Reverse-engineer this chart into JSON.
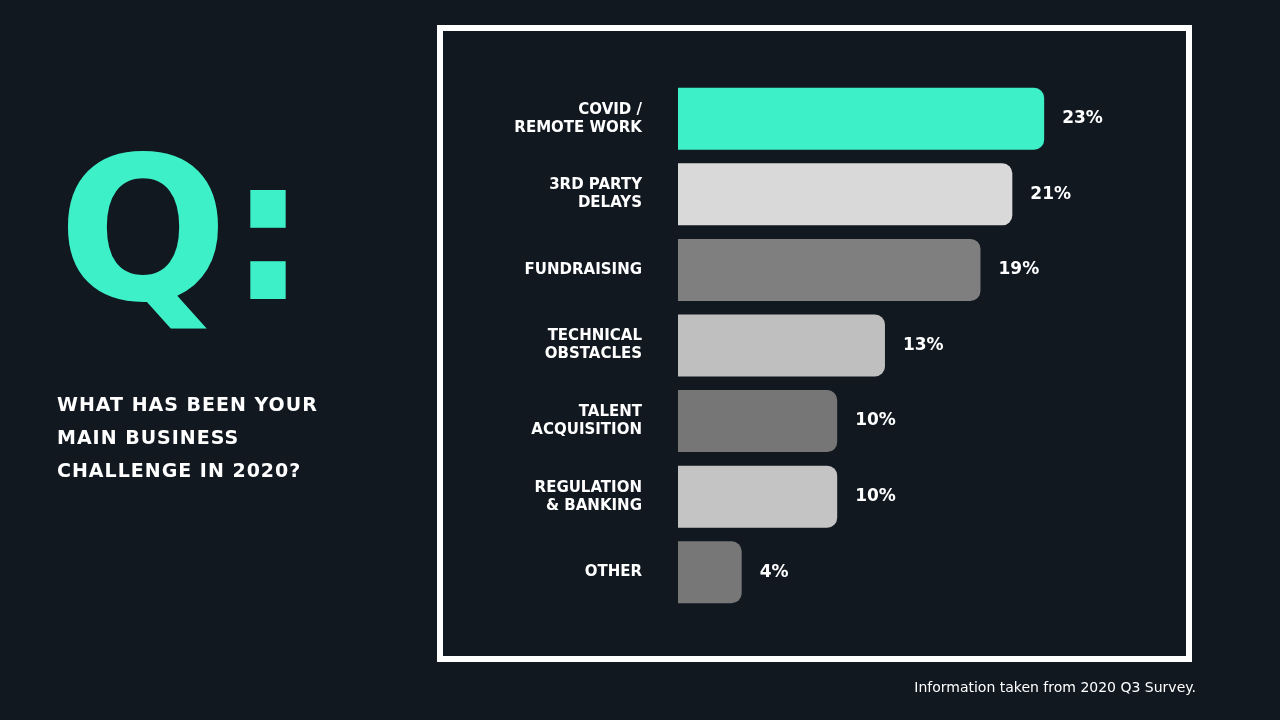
{
  "chart_data": {
    "type": "bar",
    "orientation": "horizontal",
    "title": "WHAT HAS BEEN YOUR MAIN BUSINESS CHALLENGE IN 2020?",
    "annotations": [
      "Q:",
      "Information taken from 2020 Q3 Survey."
    ],
    "categories": [
      "COVID /\nREMOTE WORK",
      "3RD PARTY\nDELAYS",
      "FUNDRAISING",
      "TECHNICAL\nOBSTACLES",
      "TALENT\nACQUISITION",
      "REGULATION\n& BANKING",
      "OTHER"
    ],
    "values": [
      23,
      21,
      19,
      13,
      10,
      10,
      4
    ],
    "colors": [
      "#3ef0c8",
      "#d9d9d9",
      "#7f7f7f",
      "#bfbfbf",
      "#767676",
      "#c4c4c4",
      "#777777"
    ],
    "value_labels": [
      "23%",
      "21%",
      "19%",
      "13%",
      "10%",
      "10%",
      "4%"
    ],
    "legend": false
  }
}
